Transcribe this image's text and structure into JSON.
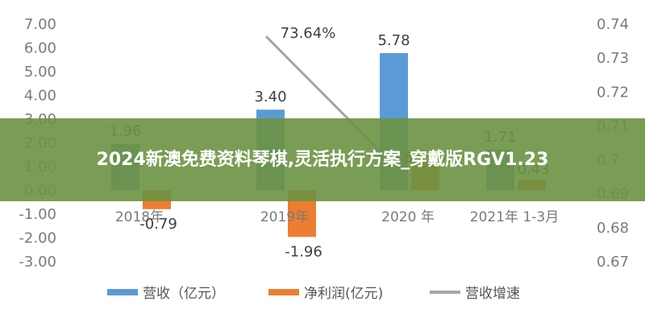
{
  "banner": {
    "title": "2024新澳免费资料琴棋,灵活执行方案_穿戴版RGV1.23"
  },
  "colors": {
    "revenue": "#5b9bd5",
    "profit": "#ed7d31",
    "growth": "#a5a5a5",
    "banner": "#6b9242"
  },
  "chart_data": {
    "type": "bar",
    "categories": [
      "2018年",
      "2019年",
      "2020 年",
      "2021年 1-3月"
    ],
    "series": [
      {
        "name": "营收（亿元）",
        "type": "bar",
        "axis": "left",
        "values": [
          1.96,
          3.4,
          5.78,
          1.71
        ],
        "labels": [
          "1.96",
          "3.40",
          "5.78",
          "1.71"
        ]
      },
      {
        "name": "净利润(亿元)",
        "type": "bar",
        "axis": "left",
        "values": [
          -0.79,
          -1.96,
          1.23,
          0.43
        ],
        "labels": [
          "-0.79",
          "-1.96",
          "",
          "0.43"
        ]
      },
      {
        "name": "营收增速",
        "type": "line",
        "axis": "right",
        "values": [
          null,
          0.7364,
          0.6998,
          null
        ],
        "labels": [
          "",
          "73.64%",
          "69.98%",
          ""
        ]
      }
    ],
    "left_axis": {
      "ylim": [
        -3,
        7
      ],
      "ticks": [
        "7.00",
        "6.00",
        "5.00",
        "4.00",
        "3.00",
        "2.00",
        "1.00",
        "0.00",
        "-1.00",
        "-2.00",
        "-3.00"
      ]
    },
    "right_axis": {
      "ylim": [
        0.67,
        0.74
      ],
      "ticks": [
        "0.74",
        "0.73",
        "0.72",
        "0.71",
        "0.7",
        "0.69",
        "0.68",
        "0.67"
      ]
    },
    "legend_position": "bottom",
    "grid": false
  }
}
